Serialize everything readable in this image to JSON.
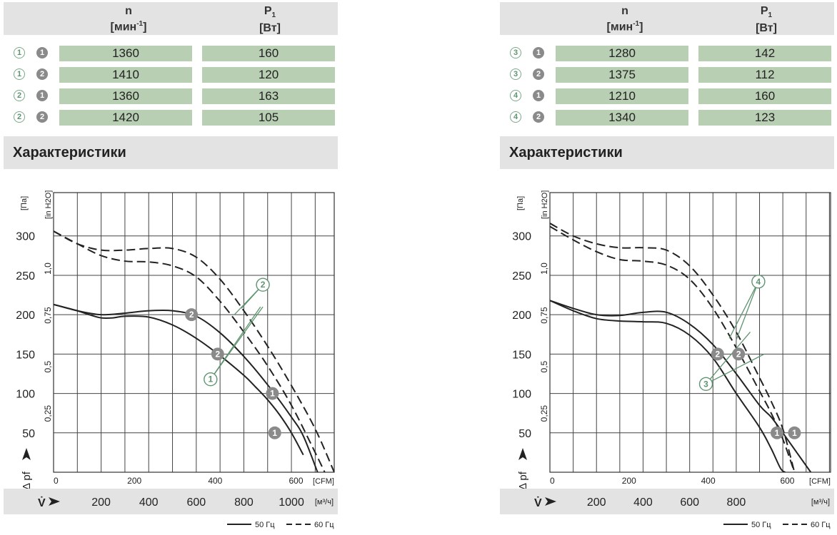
{
  "panels": [
    {
      "header": {
        "n_symbol": "n",
        "n_unit": "мин",
        "n_unit_sup": "-1",
        "p_symbol": "P",
        "p_sub": "1",
        "p_unit": "[Вт]"
      },
      "rows": [
        {
          "curve": "1",
          "variant": "1",
          "n": "1360",
          "p": "160"
        },
        {
          "curve": "1",
          "variant": "2",
          "n": "1410",
          "p": "120"
        },
        {
          "curve": "2",
          "variant": "1",
          "n": "1360",
          "p": "163"
        },
        {
          "curve": "2",
          "variant": "2",
          "n": "1420",
          "p": "105"
        }
      ],
      "section_title": "Характеристики"
    },
    {
      "header": {
        "n_symbol": "n",
        "n_unit": "мин",
        "n_unit_sup": "-1",
        "p_symbol": "P",
        "p_sub": "1",
        "p_unit": "[Вт]"
      },
      "rows": [
        {
          "curve": "3",
          "variant": "1",
          "n": "1280",
          "p": "142"
        },
        {
          "curve": "3",
          "variant": "2",
          "n": "1375",
          "p": "112"
        },
        {
          "curve": "4",
          "variant": "1",
          "n": "1210",
          "p": "160"
        },
        {
          "curve": "4",
          "variant": "2",
          "n": "1340",
          "p": "123"
        }
      ],
      "section_title": "Характеристики"
    }
  ],
  "colors": {
    "table_cell": "#b9cfb4",
    "header_bg": "#e3e3e3",
    "badge_outline": "#5f9470",
    "badge_fill": "#8a8a8a",
    "curve": "#222222"
  },
  "chart_data": [
    {
      "type": "line",
      "ylabel_pa": "[Па]",
      "ylabel_inh2o": "[in H2O]",
      "x_cfm_label": "[CFM]",
      "x_m3h_label": "[м³/ч]",
      "dp_symbol": "Δ pf",
      "v_symbol": "V̇",
      "yticks_pa": [
        50,
        100,
        150,
        200,
        250,
        300
      ],
      "yticks_inh2o": [
        "0,25",
        "0,5",
        "0,75",
        "1,0"
      ],
      "xticks_cfm": [
        0,
        200,
        400,
        600
      ],
      "xticks_m3h": [
        200,
        400,
        600,
        800,
        1000
      ],
      "xlim_m3h": [
        0,
        1180
      ],
      "ylim_pa": [
        0,
        355
      ],
      "legend": {
        "solid": "50 Гц",
        "dashed": "60 Гц"
      },
      "series": [
        {
          "id": "1-50",
          "dash": false,
          "x": [
            0,
            100,
            150,
            200,
            250,
            300,
            400,
            500,
            600,
            700,
            800,
            850,
            900,
            950,
            1000,
            1050
          ],
          "y": [
            213,
            205,
            200,
            196,
            196,
            198,
            197,
            187,
            170,
            148,
            123,
            108,
            92,
            73,
            50,
            22
          ]
        },
        {
          "id": "2-50",
          "dash": false,
          "x": [
            0,
            100,
            200,
            300,
            400,
            500,
            600,
            700,
            800,
            900,
            1000,
            1050,
            1110
          ],
          "y": [
            213,
            205,
            200,
            202,
            205,
            205,
            198,
            177,
            147,
            111,
            70,
            46,
            0
          ]
        },
        {
          "id": "1-60",
          "dash": true,
          "x": [
            0,
            100,
            200,
            300,
            400,
            500,
            600,
            700,
            800,
            900,
            1000,
            1100,
            1140
          ],
          "y": [
            306,
            290,
            275,
            268,
            267,
            262,
            248,
            217,
            178,
            135,
            85,
            25,
            0
          ]
        },
        {
          "id": "2-60",
          "dash": true,
          "x": [
            0,
            100,
            200,
            300,
            400,
            500,
            600,
            700,
            800,
            900,
            1000,
            1100,
            1180
          ],
          "y": [
            306,
            290,
            282,
            282,
            284,
            284,
            273,
            245,
            205,
            160,
            110,
            55,
            0
          ]
        }
      ],
      "labels": [
        {
          "text": "2",
          "style": "filled",
          "x": 580,
          "y": 200
        },
        {
          "text": "2",
          "style": "filled",
          "x": 690,
          "y": 150
        },
        {
          "text": "1",
          "style": "filled",
          "x": 920,
          "y": 100
        },
        {
          "text": "1",
          "style": "filled",
          "x": 930,
          "y": 50
        },
        {
          "text": "1",
          "style": "outline",
          "x": 660,
          "y": 118
        },
        {
          "text": "2",
          "style": "outline",
          "x": 880,
          "y": 238
        }
      ]
    },
    {
      "type": "line",
      "ylabel_pa": "[Па]",
      "ylabel_inh2o": "[in H2O]",
      "x_cfm_label": "[CFM]",
      "x_m3h_label": "[м³/ч]",
      "dp_symbol": "Δ pf",
      "v_symbol": "V̇",
      "yticks_pa": [
        50,
        100,
        150,
        200,
        250,
        300
      ],
      "yticks_inh2o": [
        "0,25",
        "0,5",
        "0,75",
        "1,0"
      ],
      "xticks_cfm": [
        0,
        200,
        400,
        600
      ],
      "xticks_m3h": [
        200,
        400,
        600,
        800
      ],
      "xlim_m3h": [
        0,
        1205
      ],
      "ylim_pa": [
        0,
        355
      ],
      "legend": {
        "solid": "50 Гц",
        "dashed": "60 Гц"
      },
      "series": [
        {
          "id": "3-50",
          "dash": false,
          "x": [
            0,
            100,
            200,
            300,
            400,
            500,
            600,
            700,
            800,
            900,
            950,
            990,
            1010
          ],
          "y": [
            218,
            205,
            195,
            192,
            191,
            189,
            174,
            145,
            100,
            57,
            30,
            5,
            0
          ]
        },
        {
          "id": "4-50",
          "dash": false,
          "x": [
            0,
            100,
            200,
            300,
            400,
            500,
            600,
            700,
            800,
            900,
            950,
            1000,
            1060,
            1120
          ],
          "y": [
            218,
            208,
            200,
            199,
            203,
            203,
            188,
            162,
            125,
            85,
            70,
            50,
            25,
            0
          ]
        },
        {
          "id": "3-60",
          "dash": true,
          "x": [
            0,
            100,
            200,
            300,
            400,
            500,
            600,
            700,
            800,
            900,
            950,
            1000,
            1050
          ],
          "y": [
            312,
            295,
            280,
            270,
            268,
            263,
            245,
            208,
            158,
            103,
            75,
            42,
            0
          ]
        },
        {
          "id": "4-60",
          "dash": true,
          "x": [
            0,
            100,
            200,
            300,
            400,
            500,
            600,
            700,
            800,
            900,
            950,
            1000,
            1050
          ],
          "y": [
            316,
            300,
            290,
            285,
            285,
            282,
            262,
            225,
            178,
            120,
            90,
            55,
            0
          ]
        }
      ],
      "labels": [
        {
          "text": "2",
          "style": "filled",
          "x": 720,
          "y": 150
        },
        {
          "text": "2",
          "style": "filled",
          "x": 810,
          "y": 150
        },
        {
          "text": "1",
          "style": "filled",
          "x": 975,
          "y": 50
        },
        {
          "text": "1",
          "style": "filled",
          "x": 1050,
          "y": 50
        },
        {
          "text": "3",
          "style": "outline",
          "x": 670,
          "y": 112
        },
        {
          "text": "4",
          "style": "outline",
          "x": 895,
          "y": 242
        }
      ]
    }
  ]
}
